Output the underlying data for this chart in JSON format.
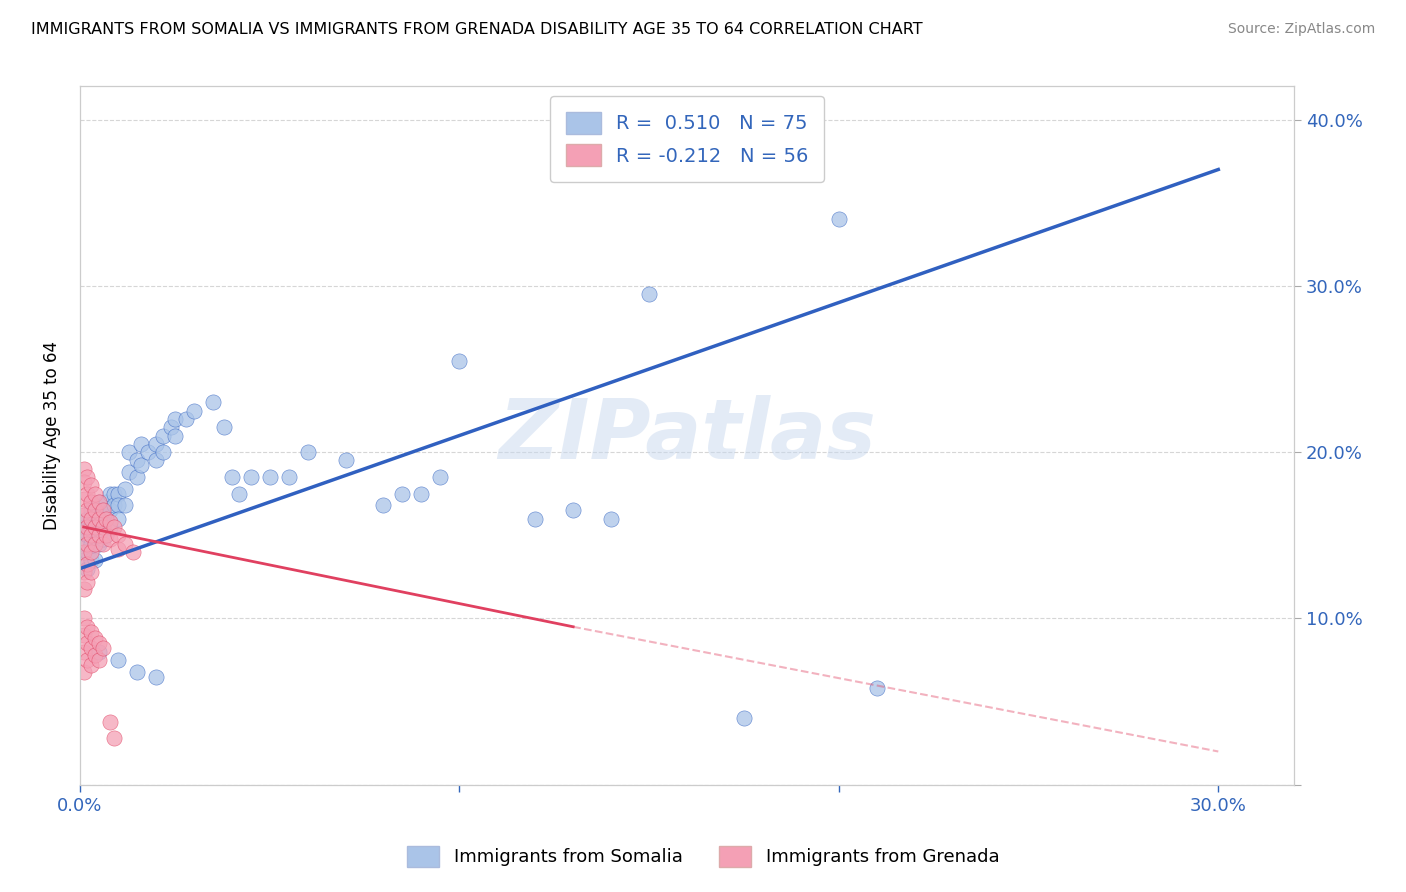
{
  "title": "IMMIGRANTS FROM SOMALIA VS IMMIGRANTS FROM GRENADA DISABILITY AGE 35 TO 64 CORRELATION CHART",
  "source": "Source: ZipAtlas.com",
  "ylabel": "Disability Age 35 to 64",
  "ylim": [
    0.0,
    0.42
  ],
  "xlim": [
    0.0,
    0.32
  ],
  "color_somalia": "#aac4e8",
  "color_grenada": "#f4a0b5",
  "line_color_somalia": "#3060c0",
  "line_color_grenada": "#e04060",
  "watermark": "ZIPatlas",
  "somalia_points": [
    [
      0.001,
      0.155
    ],
    [
      0.001,
      0.145
    ],
    [
      0.001,
      0.135
    ],
    [
      0.002,
      0.16
    ],
    [
      0.002,
      0.15
    ],
    [
      0.002,
      0.14
    ],
    [
      0.002,
      0.13
    ],
    [
      0.003,
      0.165
    ],
    [
      0.003,
      0.155
    ],
    [
      0.003,
      0.145
    ],
    [
      0.003,
      0.135
    ],
    [
      0.004,
      0.165
    ],
    [
      0.004,
      0.155
    ],
    [
      0.004,
      0.145
    ],
    [
      0.004,
      0.135
    ],
    [
      0.005,
      0.17
    ],
    [
      0.005,
      0.155
    ],
    [
      0.005,
      0.145
    ],
    [
      0.006,
      0.165
    ],
    [
      0.006,
      0.155
    ],
    [
      0.006,
      0.148
    ],
    [
      0.007,
      0.17
    ],
    [
      0.007,
      0.16
    ],
    [
      0.007,
      0.15
    ],
    [
      0.008,
      0.175
    ],
    [
      0.008,
      0.165
    ],
    [
      0.008,
      0.155
    ],
    [
      0.009,
      0.175
    ],
    [
      0.009,
      0.168
    ],
    [
      0.01,
      0.175
    ],
    [
      0.01,
      0.168
    ],
    [
      0.01,
      0.16
    ],
    [
      0.012,
      0.178
    ],
    [
      0.012,
      0.168
    ],
    [
      0.013,
      0.2
    ],
    [
      0.013,
      0.188
    ],
    [
      0.015,
      0.195
    ],
    [
      0.015,
      0.185
    ],
    [
      0.016,
      0.205
    ],
    [
      0.016,
      0.192
    ],
    [
      0.018,
      0.2
    ],
    [
      0.02,
      0.205
    ],
    [
      0.02,
      0.195
    ],
    [
      0.022,
      0.21
    ],
    [
      0.022,
      0.2
    ],
    [
      0.024,
      0.215
    ],
    [
      0.025,
      0.22
    ],
    [
      0.025,
      0.21
    ],
    [
      0.028,
      0.22
    ],
    [
      0.03,
      0.225
    ],
    [
      0.035,
      0.23
    ],
    [
      0.038,
      0.215
    ],
    [
      0.04,
      0.185
    ],
    [
      0.042,
      0.175
    ],
    [
      0.045,
      0.185
    ],
    [
      0.05,
      0.185
    ],
    [
      0.055,
      0.185
    ],
    [
      0.06,
      0.2
    ],
    [
      0.07,
      0.195
    ],
    [
      0.08,
      0.168
    ],
    [
      0.085,
      0.175
    ],
    [
      0.09,
      0.175
    ],
    [
      0.095,
      0.185
    ],
    [
      0.12,
      0.16
    ],
    [
      0.13,
      0.165
    ],
    [
      0.14,
      0.16
    ],
    [
      0.1,
      0.255
    ],
    [
      0.15,
      0.295
    ],
    [
      0.2,
      0.34
    ],
    [
      0.005,
      0.08
    ],
    [
      0.01,
      0.075
    ],
    [
      0.015,
      0.068
    ],
    [
      0.02,
      0.065
    ],
    [
      0.175,
      0.04
    ],
    [
      0.21,
      0.058
    ]
  ],
  "grenada_points": [
    [
      0.001,
      0.19
    ],
    [
      0.001,
      0.182
    ],
    [
      0.001,
      0.172
    ],
    [
      0.001,
      0.162
    ],
    [
      0.001,
      0.152
    ],
    [
      0.001,
      0.14
    ],
    [
      0.001,
      0.128
    ],
    [
      0.001,
      0.118
    ],
    [
      0.002,
      0.185
    ],
    [
      0.002,
      0.175
    ],
    [
      0.002,
      0.165
    ],
    [
      0.002,
      0.155
    ],
    [
      0.002,
      0.145
    ],
    [
      0.002,
      0.133
    ],
    [
      0.002,
      0.122
    ],
    [
      0.003,
      0.18
    ],
    [
      0.003,
      0.17
    ],
    [
      0.003,
      0.16
    ],
    [
      0.003,
      0.15
    ],
    [
      0.003,
      0.14
    ],
    [
      0.003,
      0.128
    ],
    [
      0.004,
      0.175
    ],
    [
      0.004,
      0.165
    ],
    [
      0.004,
      0.155
    ],
    [
      0.004,
      0.145
    ],
    [
      0.005,
      0.17
    ],
    [
      0.005,
      0.16
    ],
    [
      0.005,
      0.15
    ],
    [
      0.006,
      0.165
    ],
    [
      0.006,
      0.155
    ],
    [
      0.006,
      0.145
    ],
    [
      0.007,
      0.16
    ],
    [
      0.007,
      0.15
    ],
    [
      0.008,
      0.158
    ],
    [
      0.008,
      0.148
    ],
    [
      0.009,
      0.155
    ],
    [
      0.01,
      0.15
    ],
    [
      0.01,
      0.142
    ],
    [
      0.012,
      0.145
    ],
    [
      0.014,
      0.14
    ],
    [
      0.001,
      0.1
    ],
    [
      0.001,
      0.09
    ],
    [
      0.001,
      0.08
    ],
    [
      0.001,
      0.068
    ],
    [
      0.002,
      0.095
    ],
    [
      0.002,
      0.085
    ],
    [
      0.002,
      0.075
    ],
    [
      0.003,
      0.092
    ],
    [
      0.003,
      0.082
    ],
    [
      0.003,
      0.072
    ],
    [
      0.004,
      0.088
    ],
    [
      0.004,
      0.078
    ],
    [
      0.005,
      0.085
    ],
    [
      0.005,
      0.075
    ],
    [
      0.006,
      0.082
    ],
    [
      0.008,
      0.038
    ],
    [
      0.009,
      0.028
    ]
  ],
  "somalia_line": [
    [
      0.0,
      0.13
    ],
    [
      0.3,
      0.37
    ]
  ],
  "grenada_line_solid": [
    [
      0.001,
      0.155
    ],
    [
      0.13,
      0.095
    ]
  ],
  "grenada_line_dash": [
    [
      0.13,
      0.095
    ],
    [
      0.3,
      0.02
    ]
  ]
}
